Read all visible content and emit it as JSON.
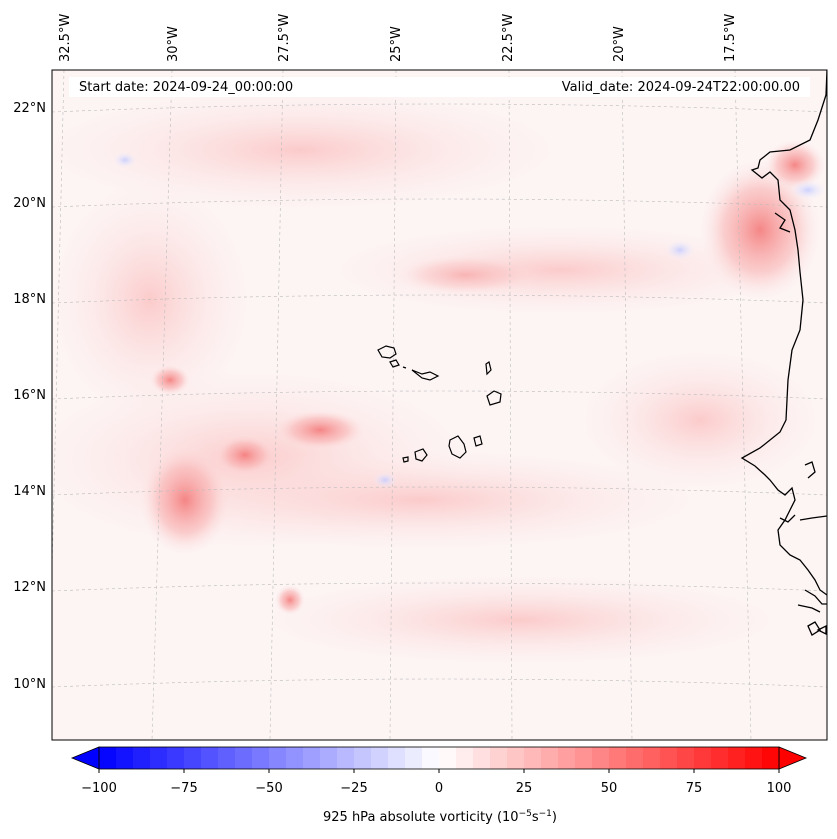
{
  "map": {
    "start_date_label": "Start date: 2024-09-24_00:00:00",
    "valid_date_label": "Valid_date: 2024-09-24T22:00:00.00",
    "lon_labels": [
      "32.5°W",
      "30°W",
      "27.5°W",
      "25°W",
      "22.5°W",
      "20°W",
      "17.5°W"
    ],
    "lat_labels": [
      "22°N",
      "20°N",
      "18°N",
      "16°N",
      "14°N",
      "12°N",
      "10°N"
    ]
  },
  "colorbar": {
    "label": "925 hPa absolute vorticity (10",
    "label_exp1": "−5",
    "label_mid": "s",
    "label_exp2": "−1",
    "label_end": ")",
    "ticks": [
      "−100",
      "−75",
      "−50",
      "−25",
      "0",
      "25",
      "50",
      "75",
      "100"
    ],
    "range": [
      -100,
      100
    ],
    "low_color": "#0000ff",
    "mid_color": "#ffffff",
    "high_color": "#ff0000"
  }
}
